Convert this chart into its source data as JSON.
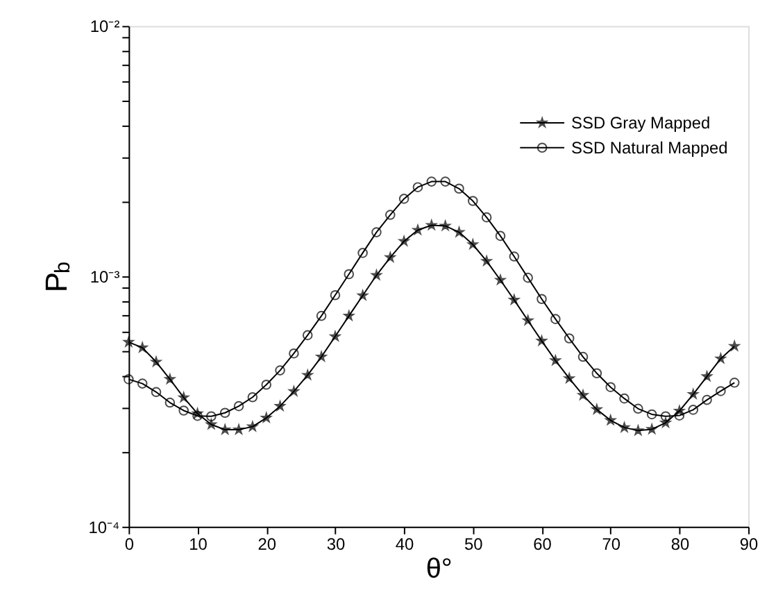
{
  "chart_data": {
    "type": "line",
    "xlabel": "θ°",
    "ylabel": "P$_{b}$",
    "x": [
      0,
      2,
      4,
      6,
      8,
      10,
      12,
      14,
      16,
      18,
      20,
      22,
      24,
      26,
      28,
      30,
      32,
      34,
      36,
      38,
      40,
      42,
      44,
      46,
      48,
      50,
      52,
      54,
      56,
      58,
      60,
      62,
      64,
      66,
      68,
      70,
      72,
      74,
      76,
      78,
      80,
      82,
      84,
      86,
      88
    ],
    "series": [
      {
        "name": "SSD Gray Mapped",
        "color": "#000000",
        "marker": "star",
        "values": [
          0.000546,
          0.000519,
          0.000455,
          0.000388,
          0.000328,
          0.000283,
          0.000256,
          0.000244,
          0.000244,
          0.000251,
          0.000272,
          0.000303,
          0.000347,
          0.000403,
          0.000477,
          0.000575,
          0.000695,
          0.000838,
          0.00101,
          0.00119,
          0.00138,
          0.00153,
          0.0016,
          0.00159,
          0.0015,
          0.00134,
          0.00115,
          0.000966,
          0.000805,
          0.000666,
          0.000552,
          0.000461,
          0.000391,
          0.000335,
          0.000294,
          0.000266,
          0.000249,
          0.000242,
          0.000245,
          0.00026,
          0.00029,
          0.000338,
          0.000398,
          0.000469,
          0.000526
        ]
      },
      {
        "name": "SSD Natural Mapped",
        "color": "#000000",
        "marker": "circle",
        "values": [
          0.000388,
          0.000373,
          0.000345,
          0.000313,
          0.000291,
          0.000277,
          0.000276,
          0.000285,
          0.000303,
          0.000329,
          0.000369,
          0.000421,
          0.000492,
          0.000582,
          0.000695,
          0.000841,
          0.00102,
          0.00124,
          0.0015,
          0.00176,
          0.00204,
          0.00227,
          0.00239,
          0.00239,
          0.00224,
          0.002,
          0.00172,
          0.00145,
          0.0012,
          0.000987,
          0.000812,
          0.000675,
          0.000565,
          0.000477,
          0.00041,
          0.000361,
          0.000325,
          0.000296,
          0.000281,
          0.000276,
          0.000278,
          0.000293,
          0.000321,
          0.000348,
          0.000376
        ]
      }
    ],
    "xlim": [
      0,
      90
    ],
    "xticks": [
      0,
      10,
      20,
      30,
      40,
      50,
      60,
      70,
      80,
      90
    ],
    "ylim": [
      0.0001,
      0.01
    ],
    "log": true,
    "yticks": [
      {
        "value": 0.0001,
        "label": "10⁻⁴"
      },
      {
        "value": 0.0002,
        "label": null
      },
      {
        "value": 0.0003,
        "label": null
      },
      {
        "value": 0.0004,
        "label": null
      },
      {
        "value": 0.0005,
        "label": null
      },
      {
        "value": 0.0006,
        "label": null
      },
      {
        "value": 0.0007,
        "label": null
      },
      {
        "value": 0.0008,
        "label": null
      },
      {
        "value": 0.0009,
        "label": null
      },
      {
        "value": 0.001,
        "label": "10⁻³"
      },
      {
        "value": 0.002,
        "label": null
      },
      {
        "value": 0.003,
        "label": null
      },
      {
        "value": 0.004,
        "label": null
      },
      {
        "value": 0.005,
        "label": null
      },
      {
        "value": 0.006,
        "label": null
      },
      {
        "value": 0.007,
        "label": null
      },
      {
        "value": 0.008,
        "label": null
      },
      {
        "value": 0.009,
        "label": null
      },
      {
        "value": 0.01,
        "label": "10⁻²"
      }
    ],
    "grid": false,
    "legend": "top right",
    "line_style": "solid"
  }
}
